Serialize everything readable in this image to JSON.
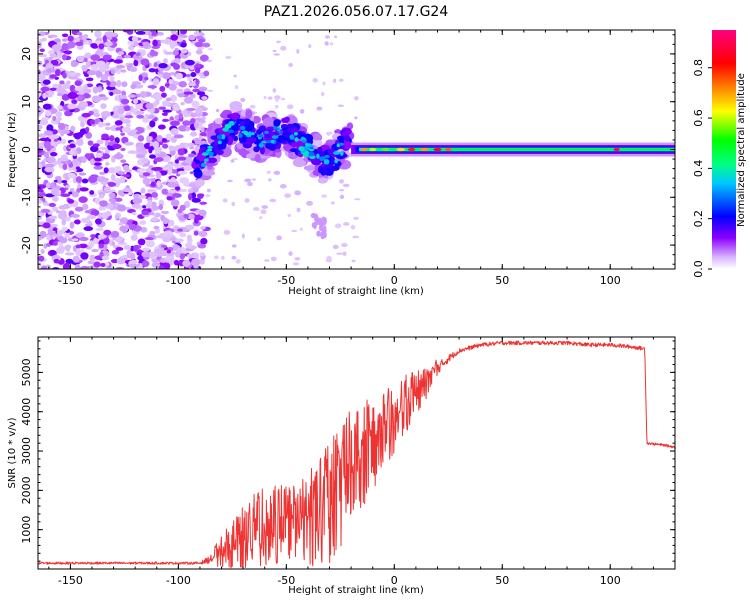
{
  "title": "PAZ1.2026.056.07.17.G24",
  "chart_data": [
    {
      "type": "heatmap",
      "xlabel": "Height of straight line (km)",
      "ylabel": "Frequency (Hz)",
      "xlim": [
        -165,
        130
      ],
      "ylim": [
        -25,
        25
      ],
      "xticks": [
        -150,
        -100,
        -50,
        0,
        50,
        100
      ],
      "yticks": [
        -20,
        -10,
        0,
        10,
        20
      ],
      "colorbar": {
        "label": "Normalized spectral amplitude",
        "range": [
          0.0,
          0.95
        ],
        "ticks": [
          0.0,
          0.2,
          0.4,
          0.6,
          0.8
        ],
        "tick_labels": [
          "0.0",
          "0.2",
          "0.4",
          "0.6",
          "0.8"
        ],
        "colors": [
          "#ffffff",
          "#d8b4fe",
          "#8b00ff",
          "#0000ff",
          "#00ffff",
          "#00ff00",
          "#ffff00",
          "#ff7f00",
          "#ff0000",
          "#ff0080"
        ]
      },
      "regions": [
        {
          "name": "noise",
          "x_range": [
            -165,
            -87
          ],
          "freq_range": [
            -25,
            25
          ],
          "amplitude": 0.05
        },
        {
          "name": "fragmented",
          "x_range": [
            -92,
            -20
          ],
          "freq_center_points": [
            [
              -88,
              -2
            ],
            [
              -75,
              5
            ],
            [
              -62,
              2
            ],
            [
              -50,
              4
            ],
            [
              -40,
              0
            ],
            [
              -30,
              -3
            ],
            [
              -22,
              2
            ]
          ],
          "amplitude": 0.35
        },
        {
          "name": "stable_line",
          "x_range": [
            -20,
            130
          ],
          "freq_center": 0,
          "amplitude": 0.5,
          "peak_amplitude": 0.9
        }
      ]
    },
    {
      "type": "line",
      "xlabel": "Height of straight line (km)",
      "ylabel": "SNR (10 * v/v)",
      "xlim": [
        -165,
        130
      ],
      "ylim": [
        0,
        5900
      ],
      "xticks": [
        -150,
        -100,
        -50,
        0,
        50,
        100
      ],
      "yticks": [
        1000,
        2000,
        3000,
        4000,
        5000
      ],
      "color": "#ee3333",
      "series": [
        {
          "name": "SNR",
          "x": [
            -165,
            -150,
            -130,
            -110,
            -90,
            -85,
            -80,
            -75,
            -70,
            -65,
            -60,
            -55,
            -50,
            -45,
            -40,
            -35,
            -30,
            -25,
            -20,
            -15,
            -10,
            -5,
            0,
            5,
            10,
            15,
            20,
            25,
            30,
            40,
            50,
            60,
            70,
            80,
            90,
            100,
            110,
            116,
            117,
            125,
            130
          ],
          "y": [
            150,
            150,
            150,
            150,
            150,
            250,
            400,
            600,
            800,
            1000,
            1200,
            1200,
            1200,
            1250,
            1300,
            1500,
            1800,
            2200,
            2800,
            3000,
            3300,
            3600,
            3800,
            4200,
            4500,
            4800,
            5100,
            5350,
            5550,
            5700,
            5750,
            5750,
            5750,
            5750,
            5700,
            5700,
            5650,
            5600,
            3200,
            3150,
            3100
          ],
          "noise_amplitude": [
            60,
            60,
            60,
            60,
            60,
            200,
            500,
            700,
            900,
            1000,
            1100,
            1100,
            1000,
            1100,
            1300,
            1600,
            1700,
            1700,
            1600,
            1500,
            1300,
            1100,
            900,
            800,
            600,
            500,
            300,
            200,
            120,
            100,
            100,
            100,
            100,
            100,
            100,
            100,
            100,
            100,
            60,
            60,
            60
          ]
        }
      ]
    }
  ]
}
